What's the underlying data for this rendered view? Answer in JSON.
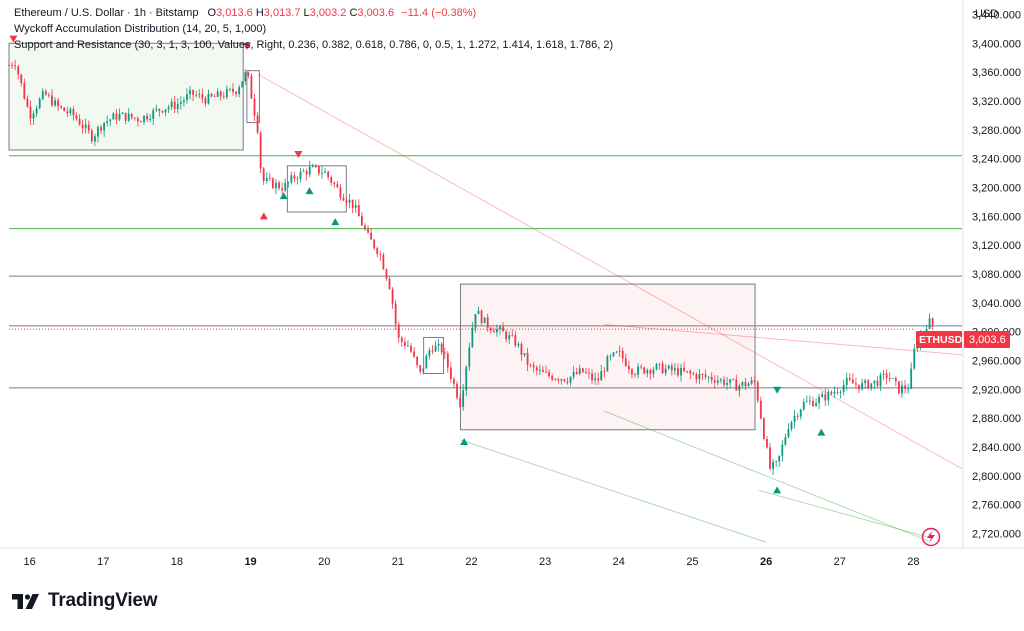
{
  "header": {
    "symbol": "Ethereum / U.S. Dollar",
    "interval": "1h",
    "exchange": "Bitstamp",
    "open_key": "O",
    "open": "3,013.6",
    "high_key": "H",
    "high": "3,013.7",
    "low_key": "L",
    "low": "3,003.2",
    "close_key": "C",
    "close": "3,003.6",
    "change": "−11.4 (−0.38%)",
    "indicator1": "Wyckoff Accumulation Distribution (14, 20, 5, 1,000)",
    "indicator2": "Support and Resistance (30, 3, 1, 3, 100, Values, Right, 0.236, 0.382, 0.618, 0.786, 0, 0.5, 1, 1.272, 1.414, 1.618, 1.786, 2)"
  },
  "axis": {
    "currency": "USD",
    "price_label": "3,003.6",
    "ticker_label": "ETHUSD"
  },
  "colors": {
    "up": "#089981",
    "down": "#f23645",
    "support": "#4caf50",
    "level": "#787b86"
  },
  "brand": {
    "name": "TradingView"
  },
  "chart_data": {
    "type": "candlestick",
    "y_axis": {
      "ylim": [
        2700,
        3460
      ],
      "ticks": [
        3440,
        3400,
        3360,
        3320,
        3280,
        3240,
        3200,
        3160,
        3120,
        3080,
        3040,
        3000,
        2960,
        2920,
        2880,
        2840,
        2800,
        2760,
        2720
      ]
    },
    "x_axis": {
      "xlim": [
        15.72,
        28.66
      ],
      "ticks": [
        {
          "day": 16,
          "label": "16",
          "bold": false
        },
        {
          "day": 17,
          "label": "17",
          "bold": false
        },
        {
          "day": 18,
          "label": "18",
          "bold": false
        },
        {
          "day": 19,
          "label": "19",
          "bold": true
        },
        {
          "day": 20,
          "label": "20",
          "bold": false
        },
        {
          "day": 21,
          "label": "21",
          "bold": false
        },
        {
          "day": 22,
          "label": "22",
          "bold": false
        },
        {
          "day": 23,
          "label": "23",
          "bold": false
        },
        {
          "day": 24,
          "label": "24",
          "bold": false
        },
        {
          "day": 25,
          "label": "25",
          "bold": false
        },
        {
          "day": 26,
          "label": "26",
          "bold": true
        },
        {
          "day": 27,
          "label": "27",
          "bold": false
        },
        {
          "day": 28,
          "label": "28",
          "bold": false
        }
      ]
    },
    "last_price": 3003.6,
    "path": [
      [
        15.72,
        3370
      ],
      [
        15.8,
        3375
      ],
      [
        16.0,
        3300
      ],
      [
        16.2,
        3330
      ],
      [
        16.4,
        3310
      ],
      [
        16.6,
        3300
      ],
      [
        16.85,
        3270
      ],
      [
        17.0,
        3290
      ],
      [
        17.2,
        3300
      ],
      [
        17.5,
        3295
      ],
      [
        17.8,
        3310
      ],
      [
        18.0,
        3315
      ],
      [
        18.2,
        3330
      ],
      [
        18.4,
        3322
      ],
      [
        18.6,
        3328
      ],
      [
        18.8,
        3335
      ],
      [
        18.95,
        3360
      ],
      [
        19.1,
        3280
      ],
      [
        19.15,
        3210
      ],
      [
        19.3,
        3205
      ],
      [
        19.45,
        3200
      ],
      [
        19.6,
        3215
      ],
      [
        19.8,
        3225
      ],
      [
        20.0,
        3222
      ],
      [
        20.2,
        3195
      ],
      [
        20.4,
        3175
      ],
      [
        20.6,
        3130
      ],
      [
        20.75,
        3110
      ],
      [
        20.9,
        3060
      ],
      [
        21.0,
        2990
      ],
      [
        21.15,
        2980
      ],
      [
        21.3,
        2940
      ],
      [
        21.45,
        2980
      ],
      [
        21.6,
        2975
      ],
      [
        21.75,
        2930
      ],
      [
        21.85,
        2900
      ],
      [
        21.95,
        2970
      ],
      [
        22.05,
        3030
      ],
      [
        22.2,
        3010
      ],
      [
        22.4,
        3000
      ],
      [
        22.6,
        2985
      ],
      [
        22.8,
        2950
      ],
      [
        23.0,
        2940
      ],
      [
        23.3,
        2935
      ],
      [
        23.5,
        2945
      ],
      [
        23.7,
        2930
      ],
      [
        23.85,
        2960
      ],
      [
        24.0,
        2970
      ],
      [
        24.2,
        2945
      ],
      [
        24.5,
        2950
      ],
      [
        24.8,
        2945
      ],
      [
        25.0,
        2940
      ],
      [
        25.3,
        2935
      ],
      [
        25.6,
        2925
      ],
      [
        25.85,
        2930
      ],
      [
        25.95,
        2870
      ],
      [
        26.05,
        2810
      ],
      [
        26.15,
        2815
      ],
      [
        26.3,
        2870
      ],
      [
        26.5,
        2900
      ],
      [
        26.7,
        2905
      ],
      [
        26.9,
        2915
      ],
      [
        27.1,
        2930
      ],
      [
        27.3,
        2925
      ],
      [
        27.5,
        2930
      ],
      [
        27.65,
        2940
      ],
      [
        27.8,
        2920
      ],
      [
        27.95,
        2925
      ],
      [
        28.0,
        2970
      ],
      [
        28.1,
        2995
      ],
      [
        28.2,
        3015
      ],
      [
        28.3,
        3003.6
      ]
    ],
    "horizontal_levels": [
      {
        "price": 3244,
        "color": "green"
      },
      {
        "price": 3143,
        "color": "green"
      },
      {
        "price": 3077,
        "color": "gray"
      },
      {
        "price": 3008,
        "color": "gray"
      },
      {
        "price": 2922,
        "color": "gray"
      }
    ],
    "trendlines": [
      {
        "from": [
          19.1,
          3357
        ],
        "to": [
          28.66,
          2810
        ],
        "color": "red"
      },
      {
        "from": [
          23.8,
          3010
        ],
        "to": [
          28.66,
          2968
        ],
        "color": "red"
      },
      {
        "from": [
          21.85,
          2850
        ],
        "to": [
          26.0,
          2708
        ],
        "color": "green"
      },
      {
        "from": [
          23.8,
          2890
        ],
        "to": [
          28.2,
          2710
        ],
        "color": "green"
      },
      {
        "from": [
          25.9,
          2780
        ],
        "to": [
          28.2,
          2715
        ],
        "color": "green"
      }
    ],
    "zones": [
      {
        "from": [
          15.72,
          3400
        ],
        "to": [
          18.9,
          3252
        ],
        "type": "accumulation"
      },
      {
        "from": [
          18.95,
          3362
        ],
        "to": [
          19.12,
          3290
        ],
        "type": "box"
      },
      {
        "from": [
          19.5,
          3230
        ],
        "to": [
          20.3,
          3166
        ],
        "type": "box"
      },
      {
        "from": [
          21.35,
          2992
        ],
        "to": [
          21.62,
          2942
        ],
        "type": "box"
      },
      {
        "from": [
          21.85,
          3066
        ],
        "to": [
          25.85,
          2864
        ],
        "type": "distribution"
      }
    ],
    "markers": [
      {
        "day": 15.78,
        "price": 3405,
        "dir": "down"
      },
      {
        "day": 18.95,
        "price": 3395,
        "dir": "down"
      },
      {
        "day": 19.65,
        "price": 3245,
        "dir": "down"
      },
      {
        "day": 19.18,
        "price": 3160,
        "dir": "down-red-up"
      },
      {
        "day": 19.45,
        "price": 3188,
        "dir": "up"
      },
      {
        "day": 19.8,
        "price": 3195,
        "dir": "up"
      },
      {
        "day": 20.15,
        "price": 3152,
        "dir": "up"
      },
      {
        "day": 21.9,
        "price": 2847,
        "dir": "up"
      },
      {
        "day": 26.15,
        "price": 2918,
        "dir": "down-green"
      },
      {
        "day": 26.15,
        "price": 2780,
        "dir": "up"
      },
      {
        "day": 26.75,
        "price": 2860,
        "dir": "up"
      }
    ]
  }
}
